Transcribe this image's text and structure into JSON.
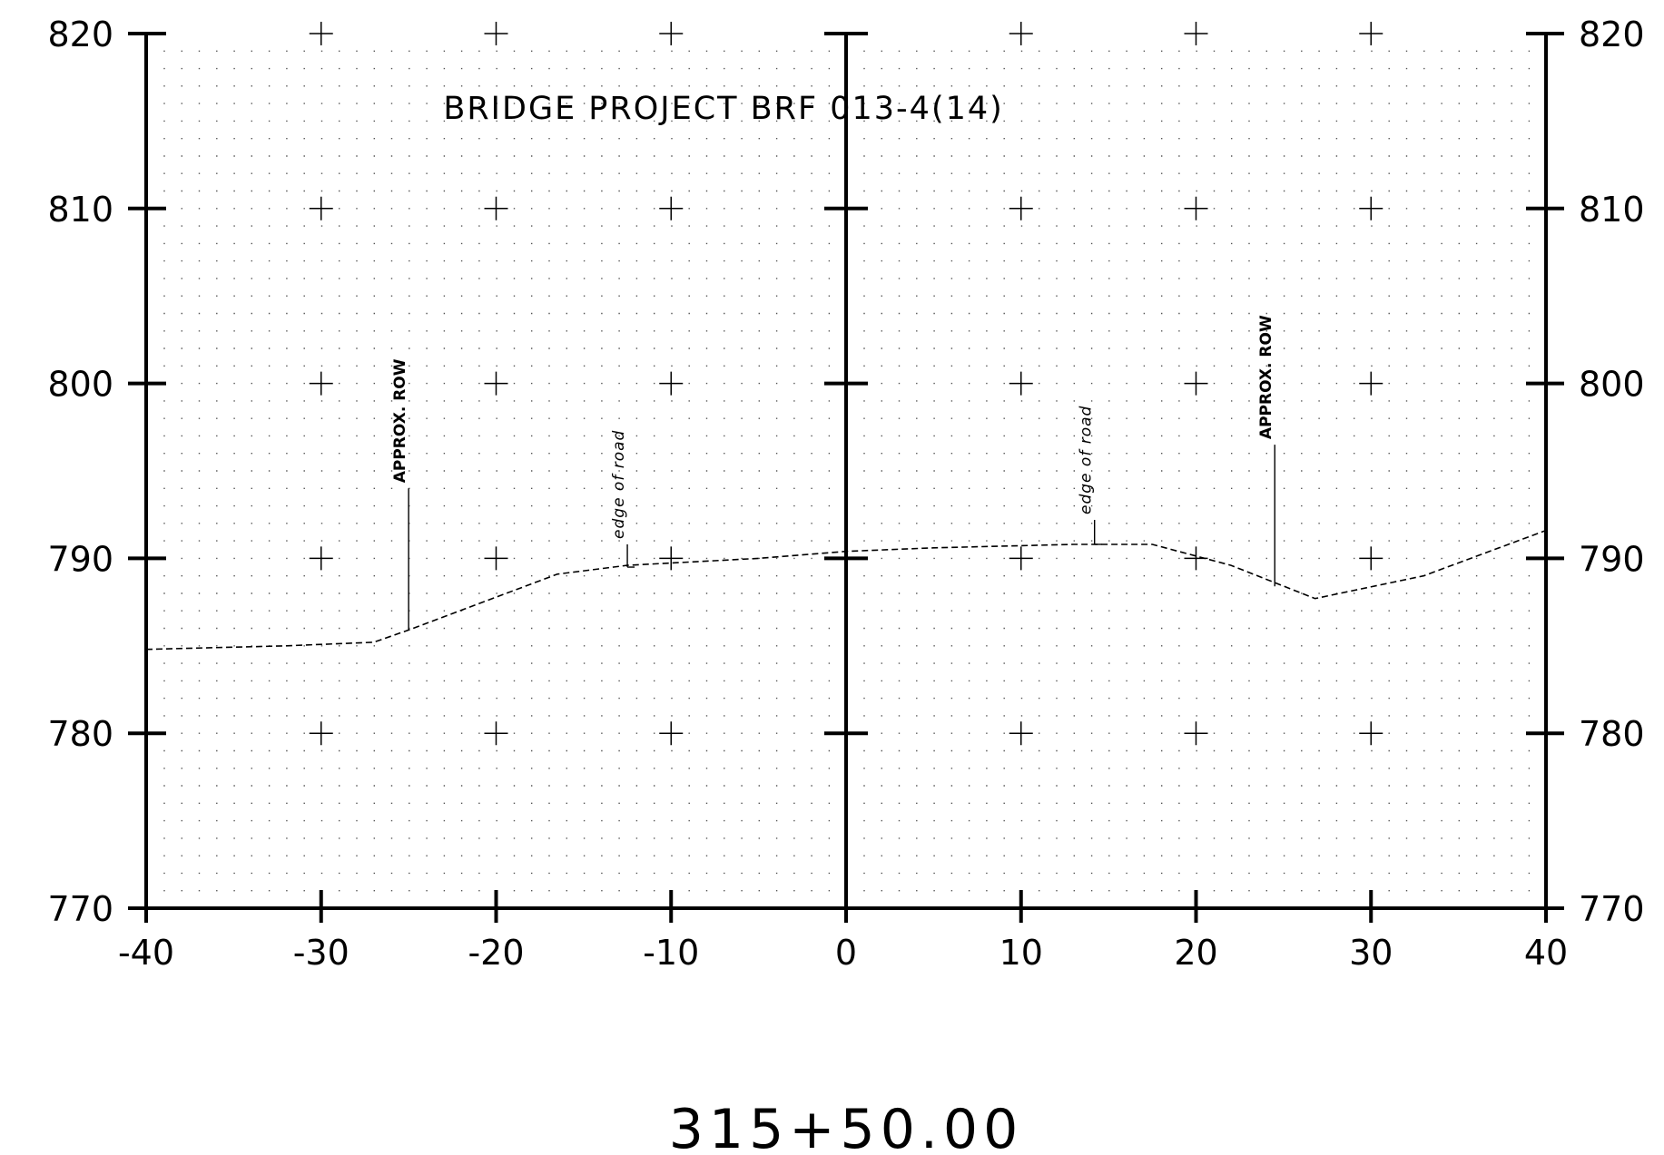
{
  "chart_data": {
    "type": "line",
    "title": "BRIDGE PROJECT BRF 013-4(14)",
    "station": "315+50.00",
    "xlim": [
      -40,
      40
    ],
    "ylim": [
      770,
      820
    ],
    "x_ticks": [
      -40,
      -30,
      -20,
      -10,
      0,
      10,
      20,
      30,
      40
    ],
    "x_tick_labels": [
      "-40",
      "-30",
      "-20",
      "-10",
      "0",
      "10",
      "20",
      "30",
      "40"
    ],
    "y_ticks": [
      770,
      780,
      790,
      800,
      810,
      820
    ],
    "y_tick_labels": [
      "770",
      "780",
      "790",
      "800",
      "810",
      "820"
    ],
    "grid": "dotted",
    "series": [
      {
        "line_style": "dashed",
        "x": [
          -40,
          -32,
          -27,
          -25,
          -16.5,
          -12.5,
          -5,
          0,
          5,
          13,
          17.5,
          22,
          26.8,
          33,
          40
        ],
        "y": [
          784.8,
          785.0,
          785.2,
          785.9,
          789.1,
          789.6,
          790.0,
          790.4,
          790.6,
          790.8,
          790.8,
          789.6,
          787.7,
          789.0,
          791.6
        ]
      }
    ],
    "annotations": [
      {
        "label": "APPROX. ROW",
        "x": -25,
        "y_top": 794,
        "y_bottom": 785.9
      },
      {
        "label": "edge of road",
        "x": -12.5,
        "y_top": 790.8,
        "y_bottom": 789.5
      },
      {
        "label": "edge of road",
        "x": 14.2,
        "y_top": 792.2,
        "y_bottom": 790.8
      },
      {
        "label": "APPROX. ROW",
        "x": 24.5,
        "y_top": 796.5,
        "y_bottom": 788.4
      }
    ]
  }
}
